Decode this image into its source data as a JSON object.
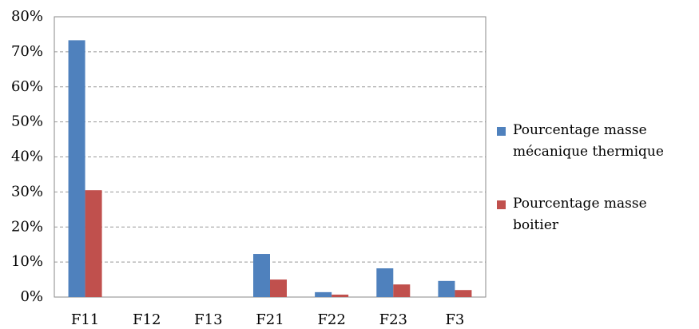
{
  "chart_data": {
    "type": "bar",
    "categories": [
      "F11",
      "F12",
      "F13",
      "F21",
      "F22",
      "F23",
      "F3"
    ],
    "series": [
      {
        "name": "Pourcentage masse mécanique thermique",
        "color": "#4f81bd",
        "values": [
          73.3,
          0,
          0,
          12.3,
          1.4,
          8.2,
          4.6
        ]
      },
      {
        "name": "Pourcentage masse boitier",
        "color": "#c0504d",
        "values": [
          30.5,
          0,
          0,
          5.0,
          0.7,
          3.6,
          2.0
        ]
      }
    ],
    "ylim": [
      0,
      80
    ],
    "yticks": [
      {
        "value": 0,
        "label": "0%"
      },
      {
        "value": 10,
        "label": "10%"
      },
      {
        "value": 20,
        "label": "20%"
      },
      {
        "value": 30,
        "label": "30%"
      },
      {
        "value": 40,
        "label": "40%"
      },
      {
        "value": 50,
        "label": "50%"
      },
      {
        "value": 60,
        "label": "60%"
      },
      {
        "value": 70,
        "label": "70%"
      },
      {
        "value": 80,
        "label": "80%"
      }
    ],
    "grid": true,
    "legend": "right"
  }
}
